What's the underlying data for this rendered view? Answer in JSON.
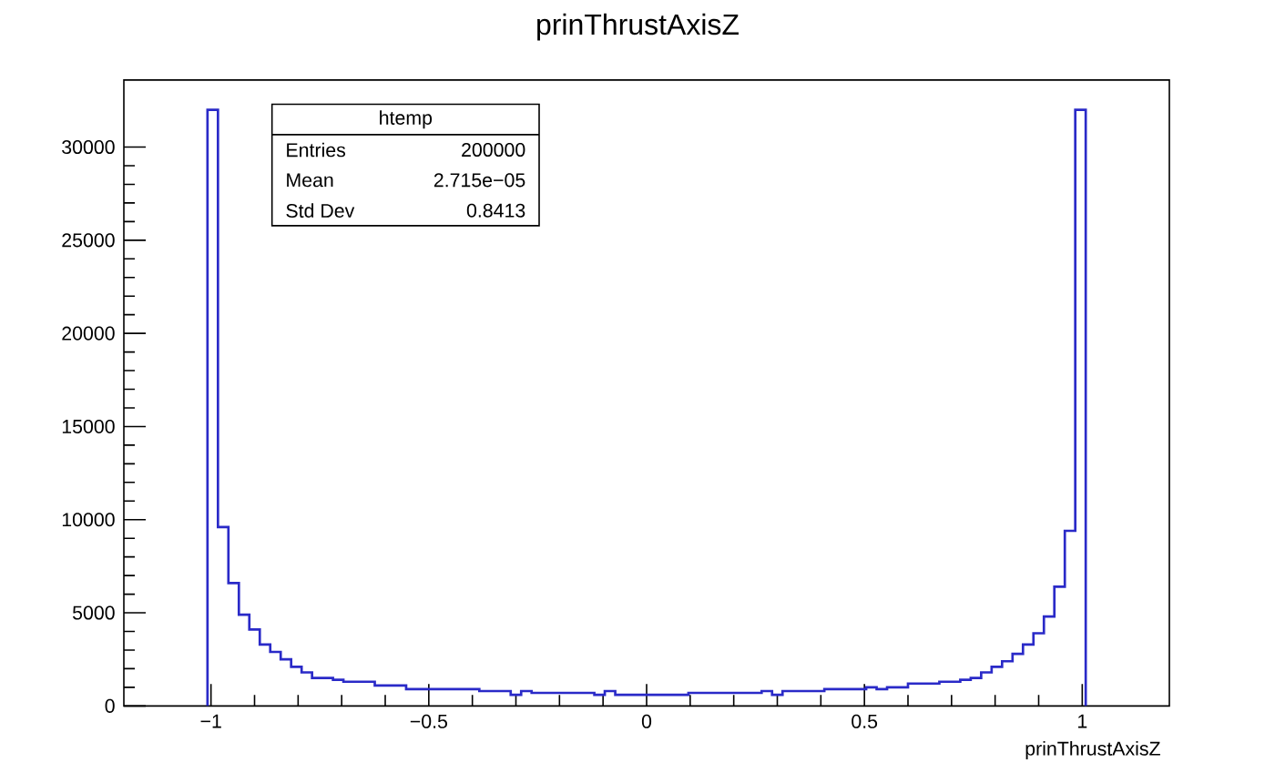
{
  "chart_data": {
    "type": "histogram",
    "title": "prinThrustAxisZ",
    "xlabel": "prinThrustAxisZ",
    "bins": [
      -1.008,
      -0.984,
      -0.96,
      -0.936,
      -0.912,
      -0.888,
      -0.864,
      -0.84,
      -0.816,
      -0.792,
      -0.768,
      -0.744,
      -0.72,
      -0.696,
      -0.672,
      -0.648,
      -0.624,
      -0.6,
      -0.576,
      -0.552,
      -0.528,
      -0.504,
      -0.48,
      -0.456,
      -0.432,
      -0.408,
      -0.384,
      -0.36,
      -0.336,
      -0.312,
      -0.288,
      -0.264,
      -0.24,
      -0.216,
      -0.192,
      -0.168,
      -0.144,
      -0.12,
      -0.096,
      -0.072,
      -0.048,
      -0.024,
      0,
      0.024,
      0.048,
      0.072,
      0.096,
      0.12,
      0.144,
      0.168,
      0.192,
      0.216,
      0.24,
      0.264,
      0.288,
      0.312,
      0.336,
      0.36,
      0.384,
      0.408,
      0.432,
      0.456,
      0.48,
      0.504,
      0.528,
      0.552,
      0.576,
      0.6,
      0.624,
      0.648,
      0.672,
      0.696,
      0.72,
      0.744,
      0.768,
      0.792,
      0.816,
      0.84,
      0.864,
      0.888,
      0.912,
      0.936,
      0.96,
      0.984,
      1.008
    ],
    "values": [
      32000,
      9600,
      6600,
      4900,
      4100,
      3300,
      2900,
      2500,
      2100,
      1800,
      1500,
      1500,
      1400,
      1300,
      1300,
      1300,
      1100,
      1100,
      1100,
      900,
      900,
      900,
      900,
      900,
      900,
      900,
      800,
      800,
      800,
      600,
      800,
      700,
      700,
      700,
      700,
      700,
      700,
      600,
      800,
      600,
      600,
      600,
      600,
      600,
      600,
      600,
      700,
      700,
      700,
      700,
      700,
      700,
      700,
      800,
      600,
      800,
      800,
      800,
      800,
      900,
      900,
      900,
      900,
      1000,
      900,
      1000,
      1000,
      1200,
      1200,
      1200,
      1300,
      1300,
      1400,
      1500,
      1800,
      2100,
      2400,
      2800,
      3300,
      3900,
      4800,
      6400,
      9400,
      32000
    ],
    "color": "#2a2ac8",
    "xlim": [
      -1.2,
      1.2
    ],
    "ylim": [
      0,
      33600
    ],
    "xticks": [
      {
        "value": -1,
        "label": "−1"
      },
      {
        "value": -0.5,
        "label": "−0.5"
      },
      0,
      0.5,
      1
    ],
    "yticks": [
      0,
      5000,
      10000,
      15000,
      20000,
      25000,
      30000
    ],
    "grid": false,
    "annotations": [
      "htemp",
      "Entries",
      "200000",
      "Mean",
      "2.715e−05",
      "Std Dev",
      "0.8413"
    ]
  }
}
